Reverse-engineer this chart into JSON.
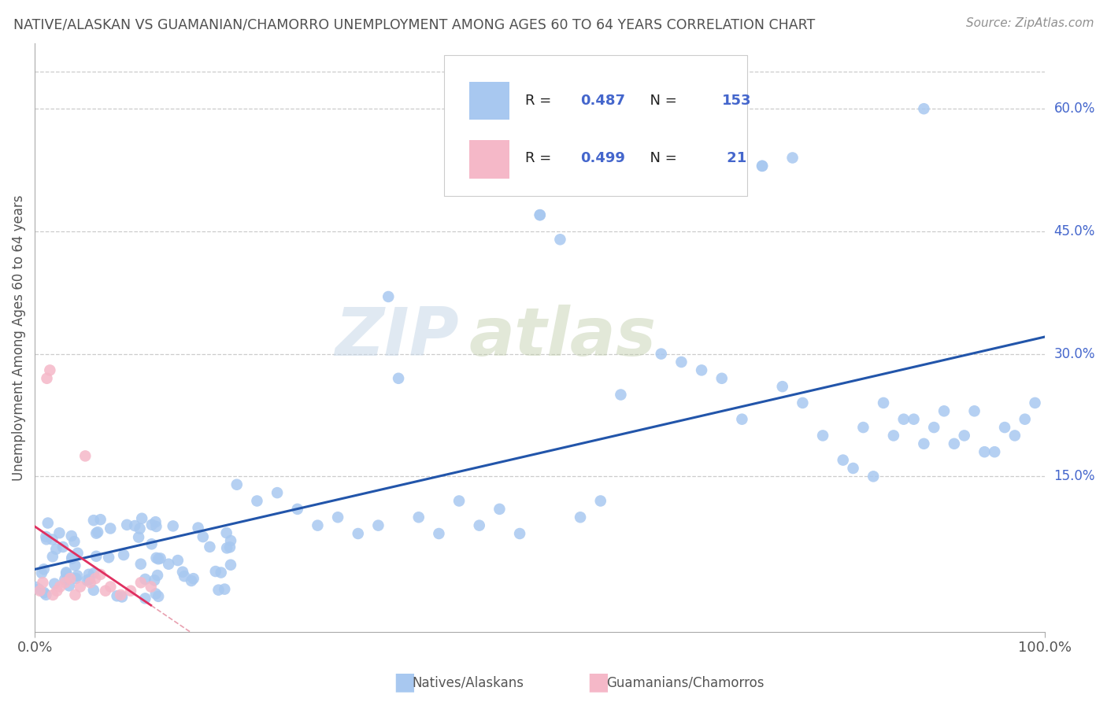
{
  "title": "NATIVE/ALASKAN VS GUAMANIAN/CHAMORRO UNEMPLOYMENT AMONG AGES 60 TO 64 YEARS CORRELATION CHART",
  "source": "Source: ZipAtlas.com",
  "ylabel_label": "Unemployment Among Ages 60 to 64 years",
  "watermark_zip": "ZIP",
  "watermark_atlas": "atlas",
  "legend_blue_R": "0.487",
  "legend_blue_N": "153",
  "legend_pink_R": "0.499",
  "legend_pink_N": " 21",
  "blue_color": "#a8c8f0",
  "pink_color": "#f5b8c8",
  "blue_line_color": "#2255aa",
  "pink_line_color": "#e03060",
  "pink_dash_color": "#e8a0b0",
  "grid_color": "#cccccc",
  "background_color": "#ffffff",
  "title_color": "#505050",
  "source_color": "#909090",
  "tick_color": "#4466cc",
  "xlim": [
    0.0,
    1.0
  ],
  "ylim": [
    -0.04,
    0.68
  ],
  "ytick_vals": [
    0.15,
    0.3,
    0.45,
    0.6
  ],
  "ytick_labels": [
    "15.0%",
    "30.0%",
    "45.0%",
    "60.0%"
  ],
  "seed_blue": 123,
  "seed_pink": 456
}
